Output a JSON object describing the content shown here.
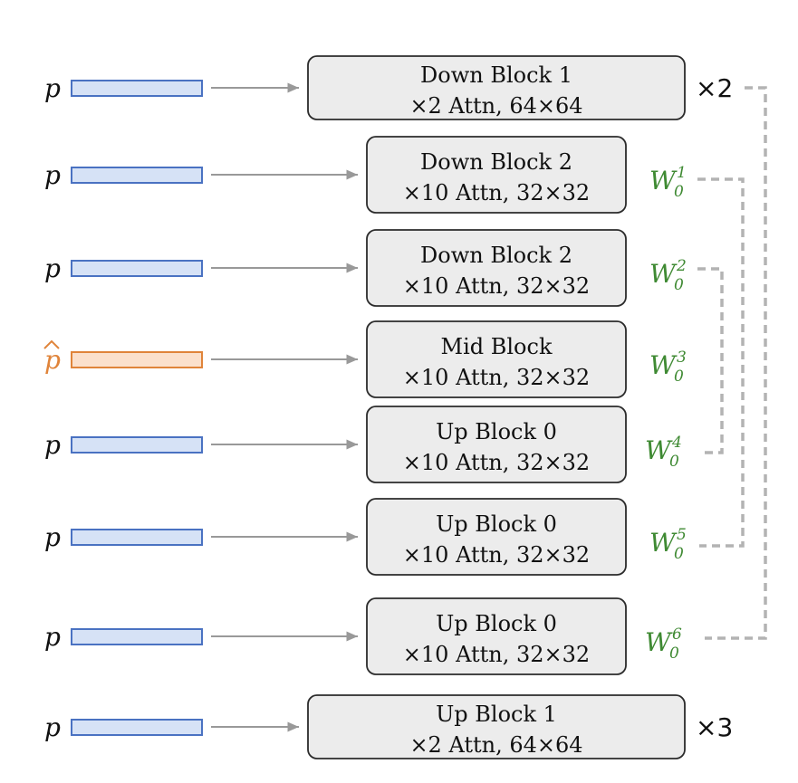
{
  "rows": [
    {
      "input": "p",
      "input_kind": "p",
      "title": "Down Block 1",
      "detail": "×2  Attn, 64×64",
      "right_label": "×2"
    },
    {
      "input": "p",
      "input_kind": "p",
      "title": "Down Block 2",
      "detail": "×10  Attn, 32×32",
      "weight": {
        "base": "W",
        "sub": "0",
        "sup": "1"
      }
    },
    {
      "input": "p",
      "input_kind": "p",
      "title": "Down Block 2",
      "detail": "×10  Attn, 32×32",
      "weight": {
        "base": "W",
        "sub": "0",
        "sup": "2"
      }
    },
    {
      "input": "p",
      "input_kind": "phat",
      "title": "Mid Block",
      "detail": "×10  Attn, 32×32",
      "weight": {
        "base": "W",
        "sub": "0",
        "sup": "3"
      }
    },
    {
      "input": "p",
      "input_kind": "p",
      "title": "Up Block 0",
      "detail": "×10  Attn, 32×32",
      "weight": {
        "base": "W",
        "sub": "0",
        "sup": "4"
      }
    },
    {
      "input": "p",
      "input_kind": "p",
      "title": "Up Block 0",
      "detail": "×10  Attn, 32×32",
      "weight": {
        "base": "W",
        "sub": "0",
        "sup": "5"
      }
    },
    {
      "input": "p",
      "input_kind": "p",
      "title": "Up Block 0",
      "detail": "×10  Attn, 32×32",
      "weight": {
        "base": "W",
        "sub": "0",
        "sup": "6"
      }
    },
    {
      "input": "p",
      "input_kind": "p",
      "title": "Up Block 1",
      "detail": "×2  Attn, 64×64",
      "right_label": "×3"
    }
  ],
  "colors": {
    "embedding_blue": "#d6e2f6",
    "embedding_blue_border": "#4a72c2",
    "embedding_orange": "#fbe0cc",
    "embedding_orange_border": "#e0843a",
    "block_fill": "#ececec",
    "weight_green": "#3f8a33",
    "connector_gray": "#b3b3b3"
  }
}
